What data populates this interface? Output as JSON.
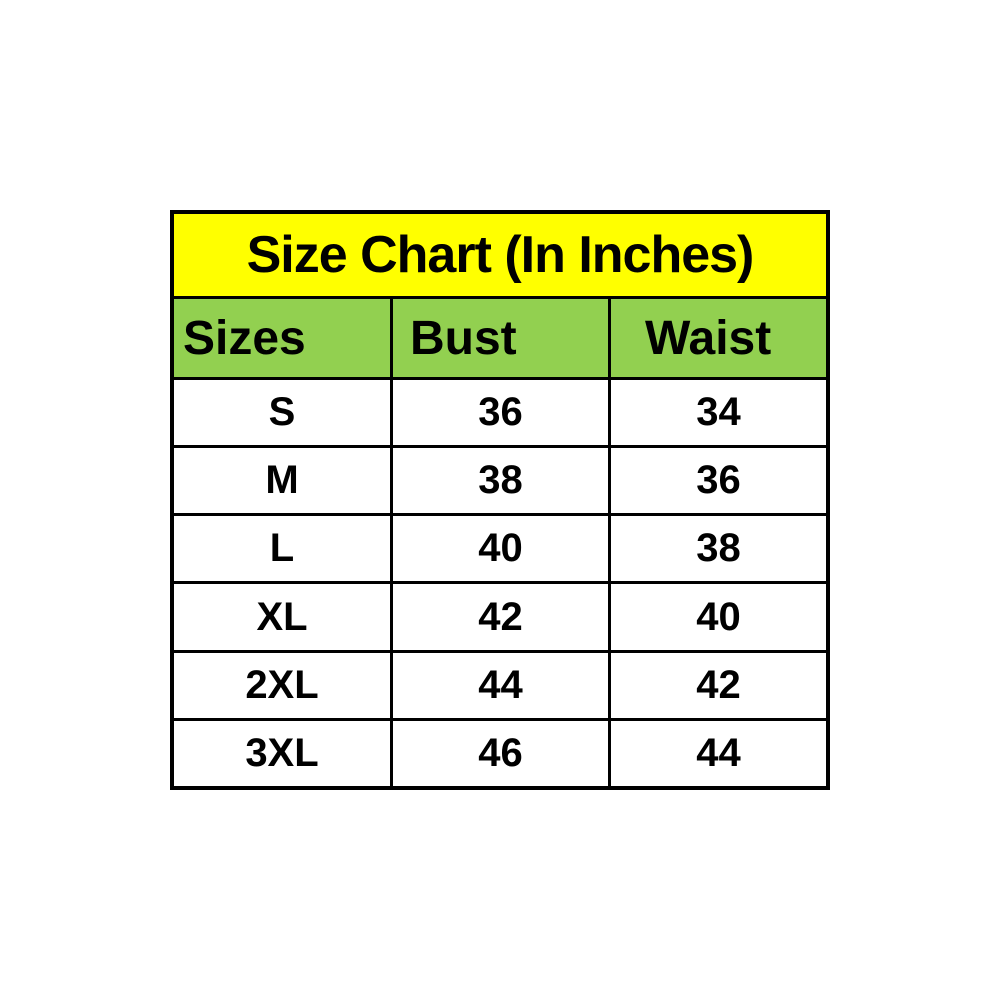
{
  "chart_data": {
    "type": "table",
    "title": "Size Chart (In Inches)",
    "columns": [
      "Sizes",
      "Bust",
      "Waist"
    ],
    "rows": [
      [
        "S",
        36,
        34
      ],
      [
        "M",
        38,
        36
      ],
      [
        "L",
        40,
        38
      ],
      [
        "XL",
        42,
        40
      ],
      [
        "2XL",
        44,
        42
      ],
      [
        "3XL",
        46,
        44
      ]
    ],
    "units": "inches"
  },
  "table": {
    "title": "Size Chart (In Inches)",
    "headers": [
      "Sizes",
      "Bust",
      "Waist"
    ],
    "rows": [
      {
        "cells": [
          "S",
          "36",
          "34"
        ]
      },
      {
        "cells": [
          "M",
          "38",
          "36"
        ]
      },
      {
        "cells": [
          "L",
          "40",
          "38"
        ]
      },
      {
        "cells": [
          "XL",
          "42",
          "40"
        ]
      },
      {
        "cells": [
          "2XL",
          "44",
          "42"
        ]
      },
      {
        "cells": [
          "3XL",
          "46",
          "44"
        ]
      }
    ]
  },
  "colors": {
    "title_background": "#ffff00",
    "header_background": "#92d050",
    "grid_border": "#000000",
    "text": "#000000",
    "page_background": "#ffffff"
  }
}
